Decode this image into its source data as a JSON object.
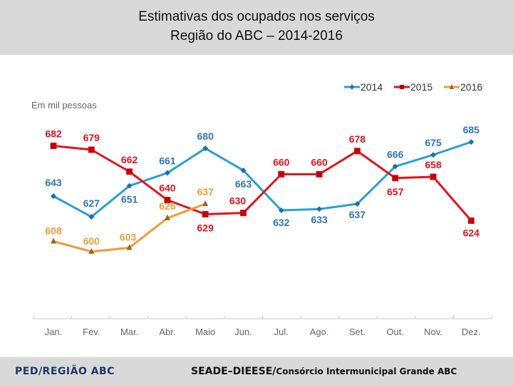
{
  "header": {
    "title_line1": "Estimativas dos ocupados nos serviços",
    "title_line2": "Região do ABC – 2014-2016"
  },
  "footer": {
    "left": "PED/REGIÃO ABC",
    "right_bold": "SEADE–DIEESE/",
    "right_normal": "Consórcio Intermunicipal Grande ABC"
  },
  "chart_data": {
    "type": "line",
    "title": "Estimativas dos ocupados nos serviços – Região do ABC – 2014-2016",
    "ylabel": "Em mil pessoas",
    "xlabel": "",
    "categories": [
      "Jan.",
      "Fev.",
      "Mar.",
      "Abr.",
      "Maio",
      "Jun.",
      "Jul.",
      "Ago.",
      "Set.",
      "Out.",
      "Nov.",
      "Dez."
    ],
    "ylim": [
      548,
      700
    ],
    "grid": false,
    "legend": "top-right",
    "series": [
      {
        "name": "2014",
        "color": "#2aa0d4",
        "label_color": "#2e75b6",
        "marker": "diamond",
        "values": [
          643,
          627,
          651,
          661,
          680,
          663,
          632,
          633,
          637,
          666,
          675,
          685
        ]
      },
      {
        "name": "2015",
        "color": "#e0141e",
        "label_color": "#e0141e",
        "marker": "square",
        "values": [
          682,
          679,
          662,
          640,
          629,
          630,
          660,
          660,
          678,
          657,
          658,
          624
        ]
      },
      {
        "name": "2016",
        "color": "#f39a3a",
        "label_color": "#f39a3a",
        "marker": "triangle",
        "values": [
          608,
          600,
          603,
          626,
          637,
          null,
          null,
          null,
          null,
          null,
          null,
          null
        ]
      }
    ]
  }
}
